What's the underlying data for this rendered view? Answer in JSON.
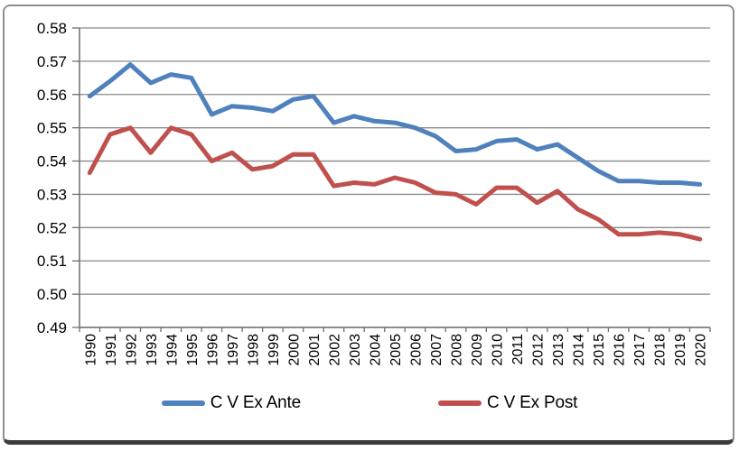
{
  "chart_data": {
    "type": "line",
    "title": "",
    "xlabel": "",
    "ylabel": "",
    "categories": [
      "1990",
      "1991",
      "1992",
      "1993",
      "1994",
      "1995",
      "1996",
      "1997",
      "1998",
      "1999",
      "2000",
      "2001",
      "2002",
      "2003",
      "2004",
      "2005",
      "2006",
      "2007",
      "2008",
      "2009",
      "2010",
      "2011",
      "2012",
      "2013",
      "2014",
      "2015",
      "2016",
      "2017",
      "2018",
      "2019",
      "2020"
    ],
    "series": [
      {
        "name": "C V Ex Ante",
        "color": "#4F81BD",
        "values": [
          0.5595,
          0.564,
          0.569,
          0.5635,
          0.566,
          0.565,
          0.554,
          0.5565,
          0.556,
          0.555,
          0.5585,
          0.5595,
          0.5515,
          0.5535,
          0.552,
          0.5515,
          0.55,
          0.5475,
          0.543,
          0.5435,
          0.546,
          0.5465,
          0.5435,
          0.545,
          0.541,
          0.537,
          0.534,
          0.534,
          0.5335,
          0.5335,
          0.533
        ]
      },
      {
        "name": "C V Ex Post",
        "color": "#C0504D",
        "values": [
          0.5365,
          0.548,
          0.55,
          0.5425,
          0.55,
          0.548,
          0.54,
          0.5425,
          0.5375,
          0.5385,
          0.542,
          0.542,
          0.5325,
          0.5335,
          0.533,
          0.535,
          0.5335,
          0.5305,
          0.53,
          0.527,
          0.532,
          0.532,
          0.5275,
          0.531,
          0.5255,
          0.5225,
          0.518,
          0.518,
          0.5185,
          0.518,
          0.5165
        ]
      }
    ],
    "ylim": [
      0.49,
      0.58
    ],
    "ytick_labels": [
      "0.58",
      "0.57",
      "0.56",
      "0.55",
      "0.54",
      "0.53",
      "0.52",
      "0.51",
      "0.50",
      "0.49"
    ],
    "grid": true,
    "legend_position": "bottom"
  },
  "colors": {
    "ex_ante": "#4F81BD",
    "ex_post": "#C0504D",
    "gridline": "#8A8A8A",
    "axis": "#6E6E6E",
    "tick_text": "#000000",
    "figure_border": "#8F8F8F",
    "figure_bottom_edge": "#3C3C3C"
  }
}
